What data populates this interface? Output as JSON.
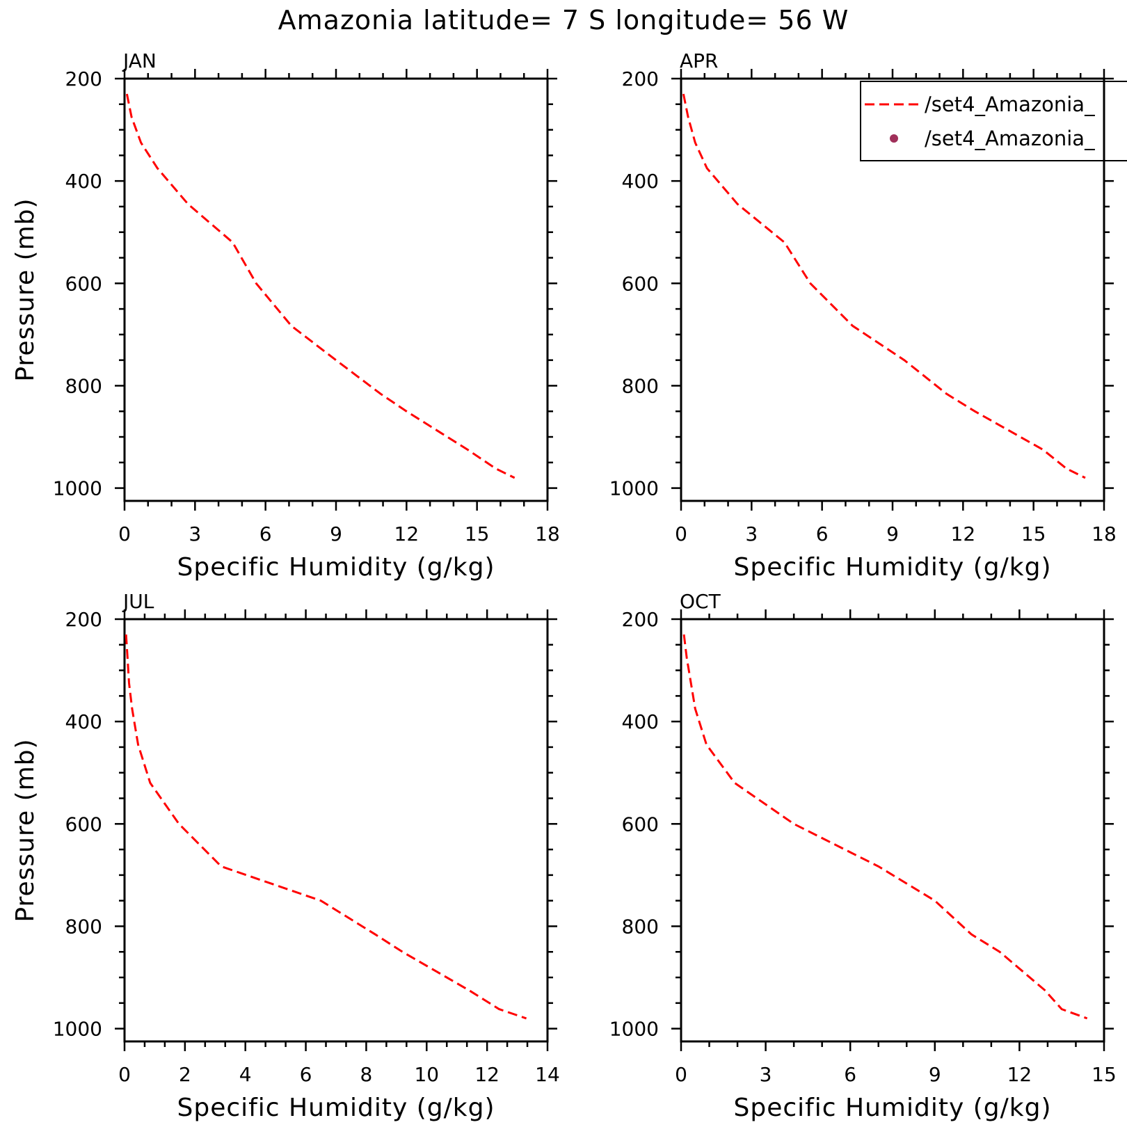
{
  "title": "Amazonia  latitude= 7 S longitude= 56 W",
  "colors": {
    "model_line": "#ff0000",
    "obs_marker": "#a0305a",
    "axes": "#000000"
  },
  "legend": {
    "entries": [
      {
        "label": "/set4_Amazonia_",
        "style": "dashed-line",
        "color": "#ff0000"
      },
      {
        "label": "/set4_Amazonia_",
        "style": "dot",
        "color": "#a0305a"
      }
    ],
    "placement": "top-right of APR panel (clipped at right edge)"
  },
  "chart_data": [
    {
      "type": "line",
      "panel": "JAN",
      "xlabel": "Specific Humidity (g/kg)",
      "ylabel": "Pressure (mb)",
      "xlim": [
        0,
        18
      ],
      "ylim": [
        1025,
        200
      ],
      "y_inverted": true,
      "xticks": [
        "0",
        "3",
        "6",
        "9",
        "12",
        "15",
        "18"
      ],
      "yticks": [
        "200",
        "400",
        "600",
        "800",
        "1000"
      ],
      "series": [
        {
          "name": "/set4_Amazonia_",
          "style": "dashed",
          "color": "#ff0000",
          "points": [
            [
              0.1,
              230
            ],
            [
              0.3,
              275
            ],
            [
              0.7,
              325
            ],
            [
              1.4,
              375
            ],
            [
              2.7,
              445
            ],
            [
              4.6,
              520
            ],
            [
              5.6,
              600
            ],
            [
              7.1,
              683
            ],
            [
              9.0,
              750
            ],
            [
              10.9,
              816
            ],
            [
              12.0,
              850
            ],
            [
              14.6,
              925
            ],
            [
              15.8,
              962
            ],
            [
              16.6,
              980
            ]
          ]
        }
      ]
    },
    {
      "type": "line",
      "panel": "APR",
      "xlabel": "Specific Humidity (g/kg)",
      "ylabel": "",
      "xlim": [
        0,
        18
      ],
      "ylim": [
        1025,
        200
      ],
      "y_inverted": true,
      "xticks": [
        "0",
        "3",
        "6",
        "9",
        "12",
        "15",
        "18"
      ],
      "yticks": [
        "200",
        "400",
        "600",
        "800",
        "1000"
      ],
      "series": [
        {
          "name": "/set4_Amazonia_",
          "style": "dashed",
          "color": "#ff0000",
          "points": [
            [
              0.1,
              230
            ],
            [
              0.3,
              275
            ],
            [
              0.6,
              325
            ],
            [
              1.1,
              375
            ],
            [
              2.4,
              445
            ],
            [
              4.4,
              520
            ],
            [
              5.5,
              600
            ],
            [
              7.3,
              683
            ],
            [
              9.5,
              750
            ],
            [
              11.3,
              816
            ],
            [
              12.5,
              850
            ],
            [
              15.4,
              925
            ],
            [
              16.4,
              962
            ],
            [
              17.2,
              980
            ]
          ]
        }
      ]
    },
    {
      "type": "line",
      "panel": "JUL",
      "xlabel": "Specific Humidity (g/kg)",
      "ylabel": "Pressure (mb)",
      "xlim": [
        0,
        14
      ],
      "ylim": [
        1025,
        200
      ],
      "y_inverted": true,
      "xticks": [
        "0",
        "2",
        "4",
        "6",
        "8",
        "10",
        "12",
        "14"
      ],
      "yticks": [
        "200",
        "400",
        "600",
        "800",
        "1000"
      ],
      "series": [
        {
          "name": "/set4_Amazonia_",
          "style": "dashed",
          "color": "#ff0000",
          "points": [
            [
              0.05,
              230
            ],
            [
              0.1,
              275
            ],
            [
              0.15,
              325
            ],
            [
              0.25,
              375
            ],
            [
              0.45,
              445
            ],
            [
              0.85,
              520
            ],
            [
              1.8,
              600
            ],
            [
              3.2,
              683
            ],
            [
              6.5,
              750
            ],
            [
              8.3,
              816
            ],
            [
              9.2,
              850
            ],
            [
              11.4,
              925
            ],
            [
              12.4,
              962
            ],
            [
              13.3,
              980
            ]
          ]
        }
      ]
    },
    {
      "type": "line",
      "panel": "OCT",
      "xlabel": "Specific Humidity (g/kg)",
      "ylabel": "",
      "xlim": [
        0,
        15
      ],
      "ylim": [
        1025,
        200
      ],
      "y_inverted": true,
      "xticks": [
        "0",
        "3",
        "6",
        "9",
        "12",
        "15"
      ],
      "yticks": [
        "200",
        "400",
        "600",
        "800",
        "1000"
      ],
      "series": [
        {
          "name": "/set4_Amazonia_",
          "style": "dashed",
          "color": "#ff0000",
          "points": [
            [
              0.1,
              230
            ],
            [
              0.2,
              275
            ],
            [
              0.35,
              325
            ],
            [
              0.5,
              375
            ],
            [
              0.9,
              445
            ],
            [
              1.9,
              520
            ],
            [
              4.0,
              600
            ],
            [
              7.0,
              683
            ],
            [
              9.0,
              750
            ],
            [
              10.3,
              816
            ],
            [
              11.3,
              850
            ],
            [
              12.9,
              925
            ],
            [
              13.5,
              962
            ],
            [
              14.4,
              980
            ]
          ]
        }
      ]
    }
  ]
}
